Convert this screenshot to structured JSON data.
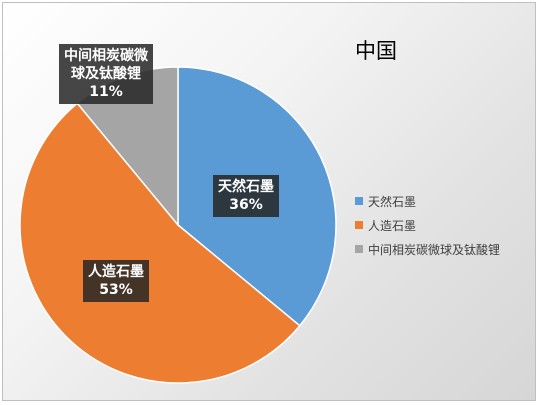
{
  "chart_data": {
    "type": "pie",
    "title": "中国",
    "categories": [
      "天然石墨",
      "人造石墨",
      "中间相炭碳微球及钛酸锂"
    ],
    "values": [
      36,
      53,
      11
    ],
    "value_labels": [
      "36%",
      "53%",
      "11%"
    ],
    "label_lines": [
      [
        "天然石墨"
      ],
      [
        "人造石墨"
      ],
      [
        "中间相炭碳微",
        "球及钛酸锂"
      ]
    ],
    "colors": [
      "#5b9bd5",
      "#ed7d31",
      "#a5a5a5"
    ],
    "legend_position": "right",
    "grid": false
  }
}
